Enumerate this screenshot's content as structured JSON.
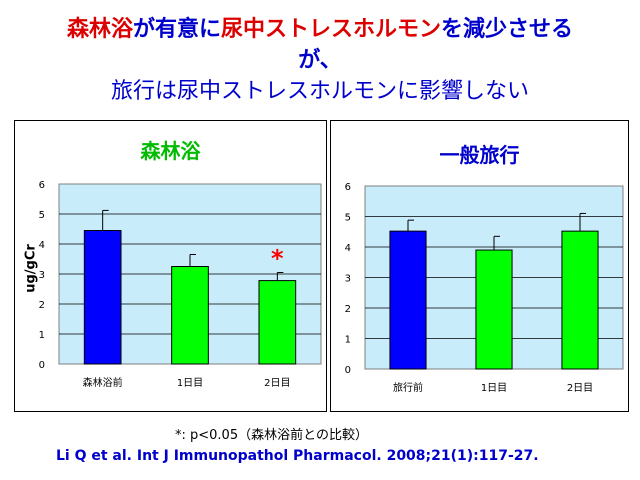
{
  "headline": {
    "line1": [
      {
        "text": "森林浴",
        "color": "#dd0000"
      },
      {
        "text": "が",
        "color": "#0000cc"
      },
      {
        "text": "有意に",
        "color": "#0000cc"
      },
      {
        "text": "尿中ストレスホルモン",
        "color": "#dd0000"
      },
      {
        "text": "を減少させる",
        "color": "#0000cc"
      }
    ],
    "line2": "が、",
    "line3": "旅行は尿中ストレスホルモンに影響しない"
  },
  "colors": {
    "baseline_bar": "#0000ff",
    "followup_bar": "#00ff00",
    "plot_bg": "#c8ecfa",
    "forest_title": "#00bb00",
    "travel_title": "#0000cc",
    "significance": "#ff0000"
  },
  "chart_data": [
    {
      "type": "bar",
      "title": "森林浴",
      "ylabel": "ug/gCr",
      "ylim": [
        0,
        6
      ],
      "yticks": [
        "0",
        "1",
        "2",
        "3",
        "4",
        "5",
        "6"
      ],
      "categories": [
        "森林浴前",
        "1日目",
        "2日目"
      ],
      "values": [
        4.45,
        3.25,
        2.78
      ],
      "error_upper": [
        5.12,
        3.65,
        3.05
      ],
      "significance": [
        "",
        "",
        "*"
      ],
      "grid": true
    },
    {
      "type": "bar",
      "title": "一般旅行",
      "ylim": [
        0,
        6
      ],
      "yticks": [
        "0",
        "1",
        "2",
        "3",
        "4",
        "5",
        "6"
      ],
      "categories": [
        "旅行前",
        "1日目",
        "2日目"
      ],
      "values": [
        4.52,
        3.9,
        4.52
      ],
      "error_upper": [
        4.88,
        4.35,
        5.1
      ],
      "significance": [
        "",
        "",
        ""
      ],
      "grid": true
    }
  ],
  "footnote": "*: p<0.05（森林浴前との比較）",
  "citation": "Li Q et al. Int J Immunopathol Pharmacol. 2008;21(1):117-27."
}
